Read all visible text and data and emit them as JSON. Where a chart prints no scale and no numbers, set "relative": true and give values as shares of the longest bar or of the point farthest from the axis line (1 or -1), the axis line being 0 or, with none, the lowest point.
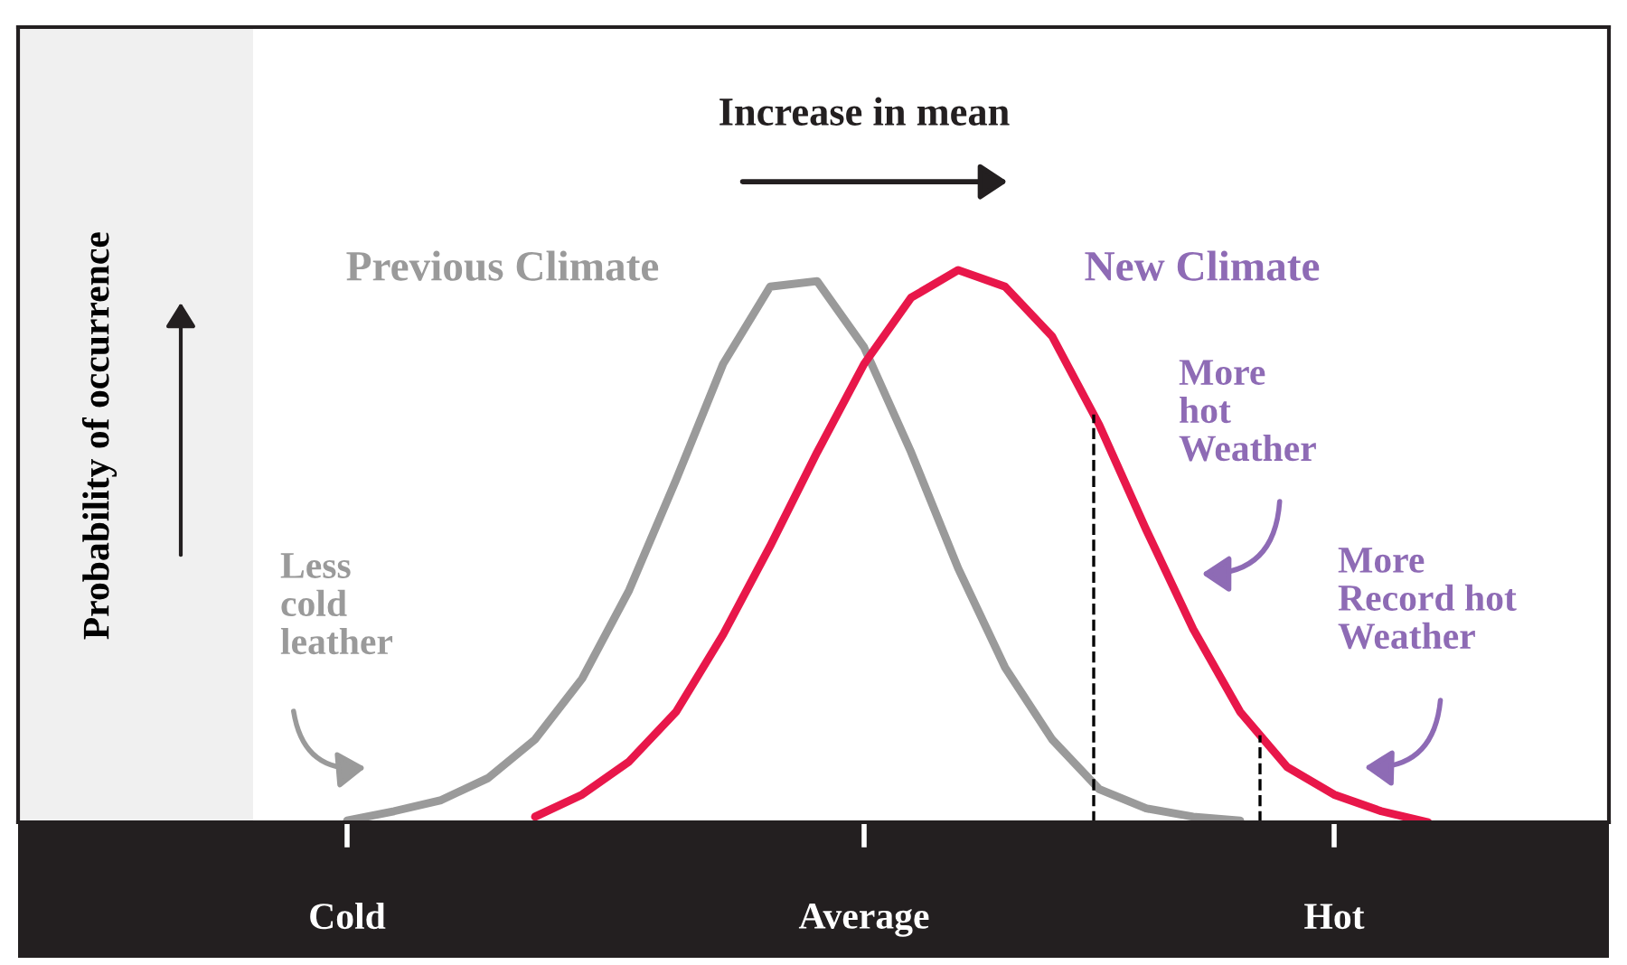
{
  "chart_data": {
    "type": "line",
    "relative": true,
    "ylabel": "Probability of occurrence",
    "categories": [
      null,
      "Cold",
      null,
      null,
      null,
      null,
      null,
      null,
      null,
      null,
      null,
      null,
      "Average",
      null,
      null,
      null,
      null,
      null,
      null,
      null,
      null,
      null,
      "Hot",
      null,
      null
    ],
    "series": [
      {
        "name": "Previous Climate",
        "color": "#9a9a9a",
        "values": [
          null,
          0.003,
          0.02,
          0.04,
          0.08,
          0.15,
          0.26,
          0.42,
          0.62,
          0.83,
          0.97,
          0.98,
          0.86,
          0.67,
          0.46,
          0.28,
          0.15,
          0.06,
          0.025,
          0.01,
          0.003,
          null,
          null,
          null,
          null
        ]
      },
      {
        "name": "New Climate",
        "color": "#e8174a",
        "values": [
          null,
          null,
          null,
          null,
          null,
          0.01,
          0.05,
          0.11,
          0.2,
          0.34,
          0.5,
          0.67,
          0.83,
          0.95,
          1.0,
          0.97,
          0.88,
          0.72,
          0.53,
          0.35,
          0.2,
          0.1,
          0.05,
          0.02,
          0
        ]
      }
    ],
    "annotations": [
      "Increase in mean",
      "Less\ncold\nleather",
      "More\nhot\nWeather",
      "More\nRecord hot\nWeather"
    ],
    "line_style": "solid",
    "marker": "none",
    "legend": false
  }
}
